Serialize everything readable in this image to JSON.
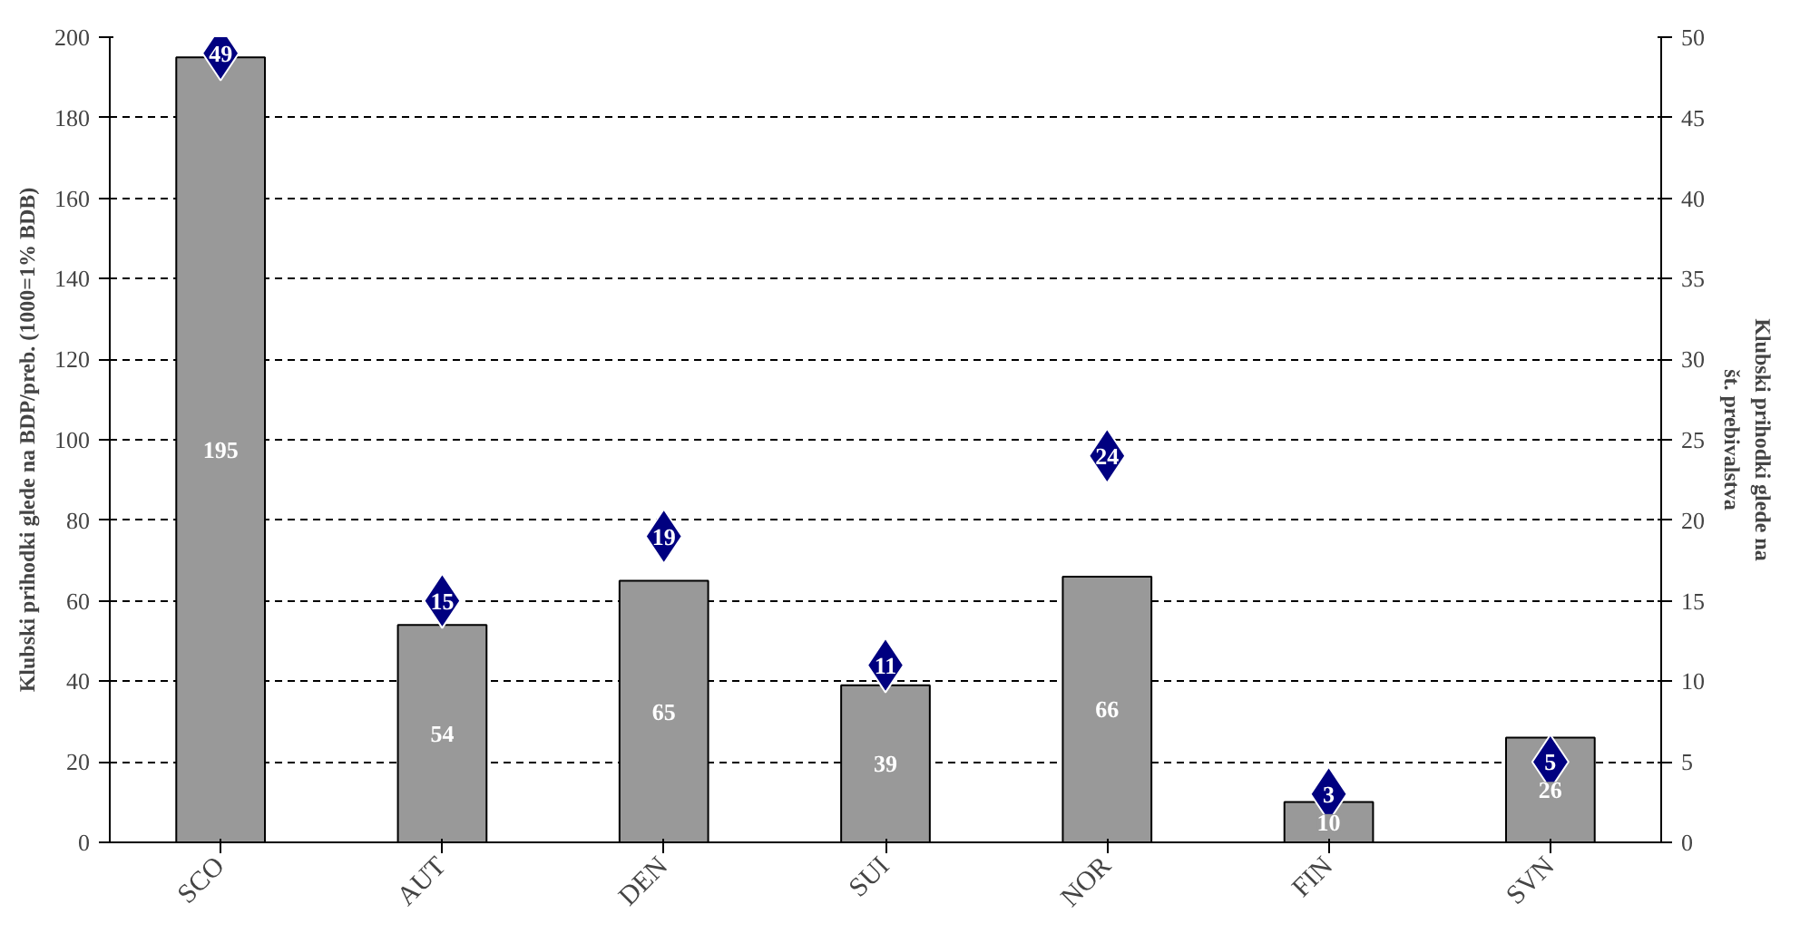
{
  "chart_data": {
    "type": "bar",
    "ylabel": "Klubski prihodki glede na BDP/preb. (1000=1% BDB)",
    "y2label": "Klubski prihodki glede na\nšt. prebivalstva",
    "categories": [
      "SCO",
      "AUT",
      "DEN",
      "SUI",
      "NOR",
      "FIN",
      "SVN"
    ],
    "series": [
      {
        "color": "#999999",
        "values": [
          195,
          54,
          65,
          39,
          66,
          10,
          26
        ]
      },
      {
        "type": "scatter",
        "axis": "y2",
        "color": "#000080",
        "values": [
          49,
          15,
          19,
          11,
          24,
          3,
          5
        ]
      }
    ],
    "ylim": [
      0,
      200
    ],
    "yticks": [
      0,
      20,
      40,
      60,
      80,
      100,
      120,
      140,
      160,
      180,
      200
    ],
    "y2lim": [
      0,
      50
    ],
    "y2ticks": [
      0,
      5,
      10,
      15,
      20,
      25,
      30,
      35,
      40,
      45,
      50
    ],
    "grid": "y",
    "line_style": "dashed",
    "marker": "diamond",
    "data_labels": true
  }
}
